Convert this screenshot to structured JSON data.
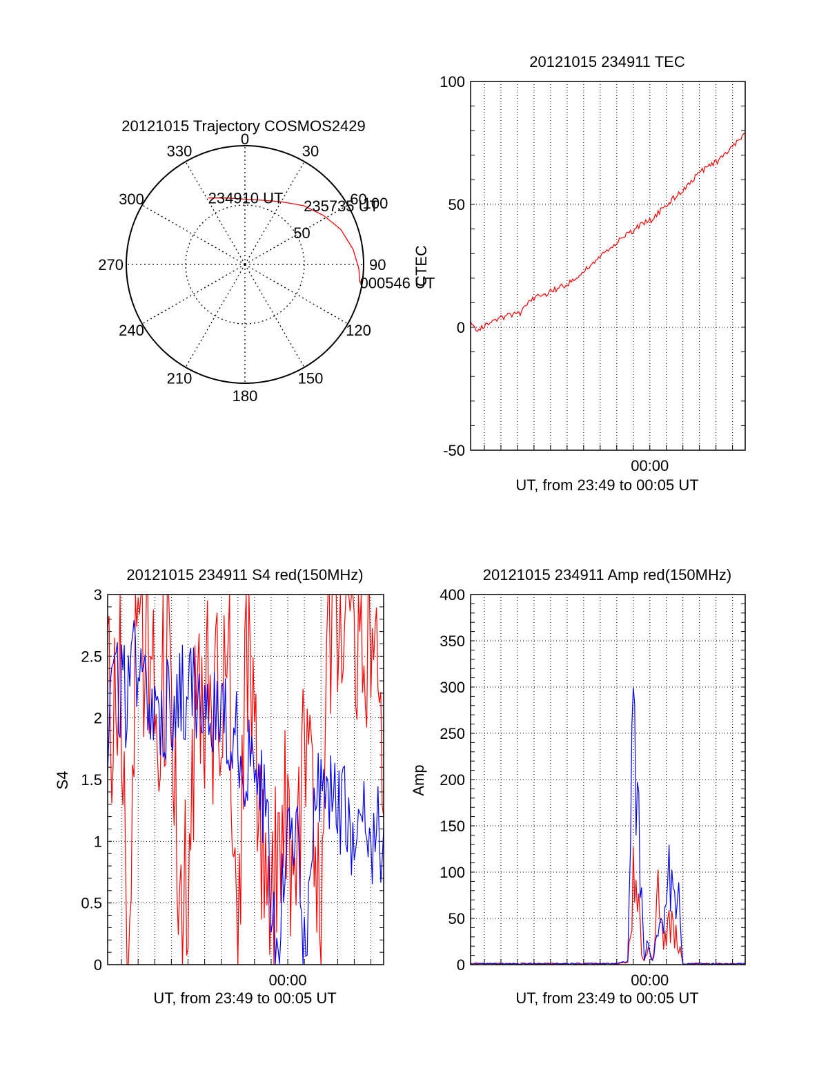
{
  "colors": {
    "red": "#ff0000",
    "blue": "#0000ff",
    "axis": "#000000",
    "grid": "#000000",
    "background": "#ffffff"
  },
  "chart_data": [
    {
      "id": "trajectory",
      "type": "polar",
      "title": "20121015 Trajectory COSMOS2429",
      "azimuth_labels": [
        "0",
        "30",
        "60",
        "90",
        "120",
        "150",
        "180",
        "210",
        "240",
        "270",
        "300",
        "330"
      ],
      "radial_ticks": [
        {
          "value": 50,
          "label": "50"
        },
        {
          "value": 100,
          "label": "100"
        }
      ],
      "r_max": 100,
      "grid": true,
      "track": {
        "color": "#ff0000",
        "points": [
          {
            "az": -29,
            "zd": 64
          },
          {
            "az": -15,
            "zd": 58
          },
          {
            "az": 0,
            "zd": 55
          },
          {
            "az": 15,
            "zd": 56
          },
          {
            "az": 30,
            "zd": 61
          },
          {
            "az": 45,
            "zd": 70
          },
          {
            "az": 58,
            "zd": 78
          },
          {
            "az": 70,
            "zd": 86
          },
          {
            "az": 82,
            "zd": 92
          },
          {
            "az": 92,
            "zd": 96
          },
          {
            "az": 99,
            "zd": 98
          }
        ]
      },
      "annotations": [
        {
          "text": "234910 UT",
          "az": -29,
          "zd": 64
        },
        {
          "text": "235735 UT",
          "az": 45,
          "zd": 70
        },
        {
          "text": "000546 UT",
          "az": 99,
          "zd": 98
        }
      ]
    },
    {
      "id": "tec",
      "type": "line",
      "title": "20121015 234911 TEC",
      "xlabel": "UT, from 23:49 to 00:05 UT",
      "ylabel": "CTEC",
      "x_range": [
        "23:49:10",
        "00:05:46"
      ],
      "x_ticklabels": [
        {
          "time": "00:00",
          "label": "00:00"
        }
      ],
      "ylim": [
        -50,
        100
      ],
      "y_ticks": [
        -50,
        0,
        50,
        100
      ],
      "grid": true,
      "series": [
        {
          "color": "#ff0000",
          "x": [
            "23:49:10",
            "23:49:40",
            "23:50:10",
            "23:50:40",
            "23:51:30",
            "23:52:10",
            "23:52:50",
            "23:53:30",
            "23:54:30",
            "23:55:20",
            "23:56:10",
            "23:57:20",
            "23:58:30",
            "23:59:30",
            "00:00:10",
            "00:01:00",
            "00:02:00",
            "00:03:00",
            "00:04:00",
            "00:05:00",
            "00:05:46"
          ],
          "y": [
            1,
            -1,
            2,
            3,
            5,
            6,
            11,
            13,
            16,
            19,
            24,
            31,
            37,
            42,
            44,
            50,
            56,
            63,
            67,
            73,
            79
          ]
        }
      ]
    },
    {
      "id": "s4",
      "type": "line",
      "title": "20121015 234911 S4 red(150MHz)",
      "xlabel": "UT, from 23:49 to 00:05 UT",
      "ylabel": "S4",
      "x_range": [
        "23:49:10",
        "00:05:46"
      ],
      "x_ticklabels": [
        {
          "time": "00:00",
          "label": "00:00"
        }
      ],
      "ylim": [
        0,
        3
      ],
      "y_ticks": [
        0,
        0.5,
        1,
        1.5,
        2,
        2.5,
        3
      ],
      "y_ticklabels": [
        "0",
        "0.5",
        "1",
        "1.5",
        "2",
        "2.5",
        "3"
      ],
      "grid": true,
      "series": [
        {
          "color": "#ff0000",
          "x": [
            "23:49:10",
            "23:50:00",
            "23:50:20",
            "23:51:00",
            "23:52:00",
            "23:53:00",
            "23:53:40",
            "23:54:30",
            "23:55:30",
            "23:56:30",
            "23:57:00",
            "23:57:30",
            "23:58:00",
            "23:58:30",
            "23:59:00",
            "23:59:30",
            "23:59:50",
            "00:00:30",
            "00:00:50",
            "00:01:20",
            "00:02:00",
            "00:02:30",
            "00:03:00",
            "00:03:30",
            "00:04:00",
            "00:04:30",
            "00:05:00",
            "00:05:46"
          ],
          "y": [
            2.0,
            2.4,
            0.0,
            2.9,
            2.2,
            2.6,
            0.0,
            2.3,
            2.0,
            2.6,
            0.0,
            3.0,
            1.4,
            1.0,
            0.3,
            1.2,
            1.1,
            0.3,
            1.6,
            1.9,
            0.0,
            2.8,
            3.0,
            2.8,
            3.0,
            2.6,
            3.0,
            1.2
          ]
        },
        {
          "color": "#0000ff",
          "x": [
            "23:49:10",
            "23:49:40",
            "23:50:20",
            "23:51:00",
            "23:52:00",
            "23:53:00",
            "23:54:00",
            "23:55:00",
            "23:56:00",
            "23:57:00",
            "23:57:30",
            "23:58:00",
            "23:58:30",
            "23:58:50",
            "23:59:10",
            "23:59:30",
            "23:59:50",
            "00:00:20",
            "00:00:40",
            "00:00:55",
            "00:01:10",
            "00:01:40",
            "00:02:30",
            "00:03:30",
            "00:04:30",
            "00:05:00",
            "00:05:46"
          ],
          "y": [
            1.8,
            2.3,
            2.1,
            2.5,
            2.2,
            2.0,
            2.3,
            2.0,
            1.9,
            1.8,
            1.7,
            1.6,
            1.4,
            1.0,
            0.2,
            0.15,
            1.1,
            1.0,
            1.2,
            0.2,
            0.15,
            1.6,
            1.3,
            1.2,
            1.1,
            1.0,
            1.1
          ]
        }
      ]
    },
    {
      "id": "amp",
      "type": "line",
      "title": "20121015 234911 Amp red(150MHz)",
      "xlabel": "UT, from 23:49 to 00:05 UT",
      "ylabel": "Amp",
      "x_range": [
        "23:49:10",
        "00:05:46"
      ],
      "x_ticklabels": [
        {
          "time": "00:00",
          "label": "00:00"
        }
      ],
      "ylim": [
        0,
        400
      ],
      "y_ticks": [
        0,
        50,
        100,
        150,
        200,
        250,
        300,
        350,
        400
      ],
      "grid": true,
      "series": [
        {
          "color": "#ff0000",
          "x": [
            "23:49:10",
            "23:58:00",
            "23:58:40",
            "23:58:50",
            "23:59:00",
            "23:59:10",
            "23:59:20",
            "23:59:30",
            "23:59:40",
            "23:59:50",
            "00:00:10",
            "00:00:30",
            "00:00:50",
            "00:01:10",
            "00:01:30",
            "00:01:50",
            "00:02:00",
            "00:05:46"
          ],
          "y": [
            1,
            1,
            3,
            30,
            110,
            80,
            60,
            10,
            4,
            20,
            5,
            70,
            20,
            45,
            35,
            20,
            1,
            1
          ]
        },
        {
          "color": "#0000ff",
          "x": [
            "23:49:10",
            "23:58:00",
            "23:58:40",
            "23:58:50",
            "23:59:00",
            "23:59:10",
            "23:59:20",
            "23:59:30",
            "23:59:40",
            "23:59:50",
            "00:00:10",
            "00:00:30",
            "00:00:50",
            "00:01:10",
            "00:01:30",
            "00:01:50",
            "00:02:00",
            "00:05:46"
          ],
          "y": [
            1,
            1,
            4,
            100,
            285,
            230,
            200,
            60,
            5,
            20,
            5,
            40,
            30,
            95,
            80,
            60,
            1,
            1
          ]
        }
      ]
    }
  ]
}
